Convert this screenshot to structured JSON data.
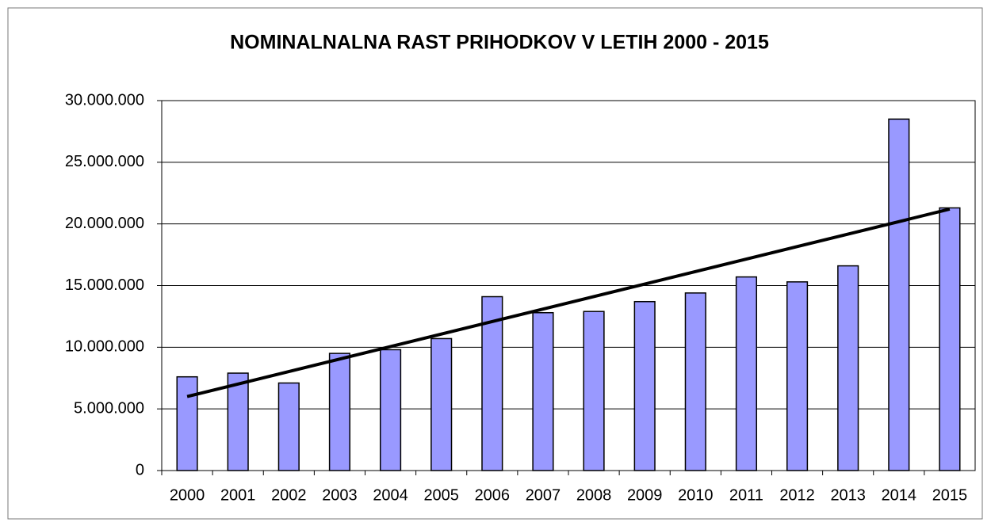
{
  "chart_data": {
    "type": "bar",
    "title": "NOMINALNALNA RAST PRIHODKOV V LETIH 2000 - 2015",
    "categories": [
      "2000",
      "2001",
      "2002",
      "2003",
      "2004",
      "2005",
      "2006",
      "2007",
      "2008",
      "2009",
      "2010",
      "2011",
      "2012",
      "2013",
      "2014",
      "2015"
    ],
    "values": [
      7600000,
      7900000,
      7100000,
      9500000,
      9800000,
      10700000,
      14100000,
      12800000,
      12900000,
      13700000,
      14400000,
      15700000,
      15300000,
      16600000,
      28500000,
      21300000
    ],
    "color": "#9999ff",
    "trendline": {
      "color": "#000000",
      "values": [
        6000000,
        21200000
      ]
    },
    "ylim": [
      0,
      30000000
    ],
    "yticks": [
      0,
      {
        "value": 5000000,
        "label": "5.000.000"
      },
      {
        "value": 10000000,
        "label": "10.000.000"
      },
      {
        "value": 15000000,
        "label": "15.000.000"
      },
      {
        "value": 20000000,
        "label": "20.000.000"
      },
      {
        "value": 25000000,
        "label": "25.000.000"
      },
      {
        "value": 30000000,
        "label": "30.000.000"
      }
    ],
    "grid": true
  }
}
